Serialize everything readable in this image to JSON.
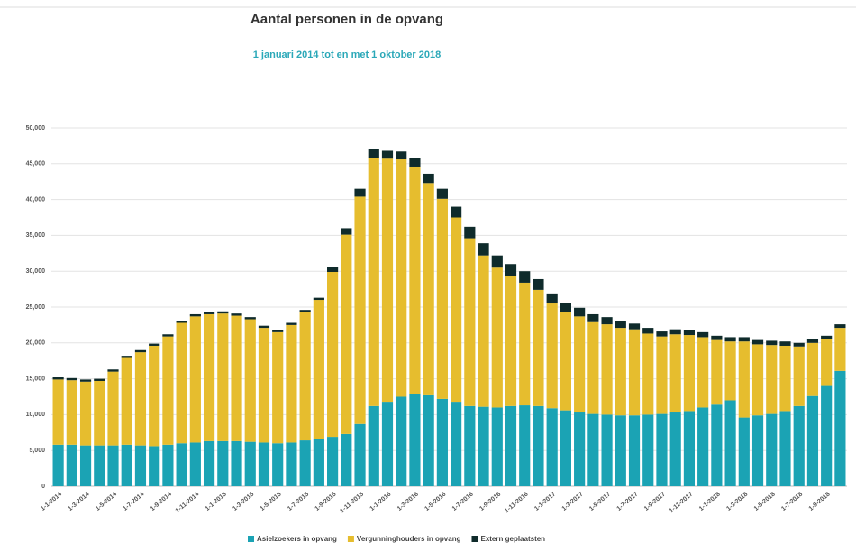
{
  "chart_data": {
    "type": "stacked_bar",
    "title": "Aantal personen in de opvang",
    "subtitle": "1 januari 2014 tot en met 1 oktober 2018",
    "categories": [
      "1-1-2014",
      null,
      "1-3-2014",
      null,
      "1-5-2014",
      null,
      "1-7-2014",
      null,
      "1-9-2014",
      null,
      "1-11-2014",
      null,
      "1-1-2015",
      null,
      "1-3-2015",
      null,
      "1-5-2015",
      null,
      "1-7-2015",
      null,
      "1-9-2015",
      null,
      "1-11-2015",
      null,
      "1-1-2016",
      null,
      "1-3-2016",
      null,
      "1-5-2016",
      null,
      "1-7-2016",
      null,
      "1-9-2016",
      null,
      "1-11-2016",
      null,
      "1-1-2017",
      null,
      "1-3-2017",
      null,
      "1-5-2017",
      null,
      "1-7-2017",
      null,
      "1-9-2017",
      null,
      "1-11-2017",
      null,
      "1-1-2018",
      null,
      "1-3-2018",
      null,
      "1-5-2018",
      null,
      "1-7-2018",
      null,
      "1-9-2018",
      null
    ],
    "series": [
      {
        "name": "Asielzoekers in opvang",
        "color": "#1ba3b4",
        "values": [
          5800,
          5800,
          5700,
          5700,
          5700,
          5800,
          5700,
          5600,
          5800,
          6000,
          6100,
          6300,
          6300,
          6300,
          6200,
          6100,
          6000,
          6100,
          6400,
          6600,
          6900,
          7300,
          8700,
          11200,
          11800,
          12500,
          12900,
          12700,
          12200,
          11800,
          11200,
          11100,
          11000,
          11200,
          11300,
          11200,
          10900,
          10600,
          10300,
          10100,
          10000,
          9900,
          9900,
          10000,
          10100,
          10300,
          10500,
          11000,
          11400,
          12000,
          9600,
          9900,
          10100,
          10500,
          11200,
          12600,
          14000,
          16100
        ]
      },
      {
        "name": "Vergunninghouders in opvang",
        "color": "#e6bd2e",
        "values": [
          9100,
          9000,
          8900,
          9000,
          10300,
          12100,
          13000,
          14000,
          15100,
          16800,
          17600,
          17700,
          17800,
          17500,
          17100,
          16000,
          15500,
          16400,
          17900,
          19400,
          23000,
          27800,
          31700,
          34600,
          33900,
          33100,
          31700,
          29600,
          27900,
          25700,
          23400,
          21100,
          19500,
          18100,
          17100,
          16200,
          14600,
          13700,
          13400,
          12800,
          12600,
          12200,
          12000,
          11300,
          10800,
          10900,
          10600,
          9800,
          9000,
          8200,
          10600,
          9900,
          9600,
          9100,
          8300,
          7400,
          6500,
          6000
        ]
      },
      {
        "name": "Extern geplaatsten",
        "color": "#0f2b2b",
        "values": [
          300,
          300,
          300,
          300,
          300,
          300,
          300,
          300,
          300,
          300,
          300,
          300,
          300,
          300,
          300,
          300,
          300,
          300,
          300,
          300,
          700,
          900,
          1100,
          1200,
          1100,
          1100,
          1200,
          1300,
          1400,
          1500,
          1600,
          1700,
          1700,
          1700,
          1600,
          1500,
          1400,
          1300,
          1200,
          1100,
          1000,
          900,
          800,
          800,
          700,
          700,
          700,
          700,
          600,
          600,
          600,
          600,
          600,
          600,
          500,
          500,
          500,
          500
        ]
      }
    ],
    "ylim": [
      0,
      50000
    ],
    "yticks": [
      0,
      {
        "value": 5000,
        "label": "5,000"
      },
      {
        "value": 10000,
        "label": "10,000"
      },
      {
        "value": 15000,
        "label": "15,000"
      },
      {
        "value": 20000,
        "label": "20,000"
      },
      {
        "value": 25000,
        "label": "25,000"
      },
      {
        "value": 30000,
        "label": "30,000"
      },
      {
        "value": 35000,
        "label": "35,000"
      },
      {
        "value": 40000,
        "label": "40,000"
      },
      {
        "value": 45000,
        "label": "45,000"
      },
      {
        "value": 50000,
        "label": "50,000"
      }
    ],
    "grid": true,
    "legend": "bottom"
  }
}
